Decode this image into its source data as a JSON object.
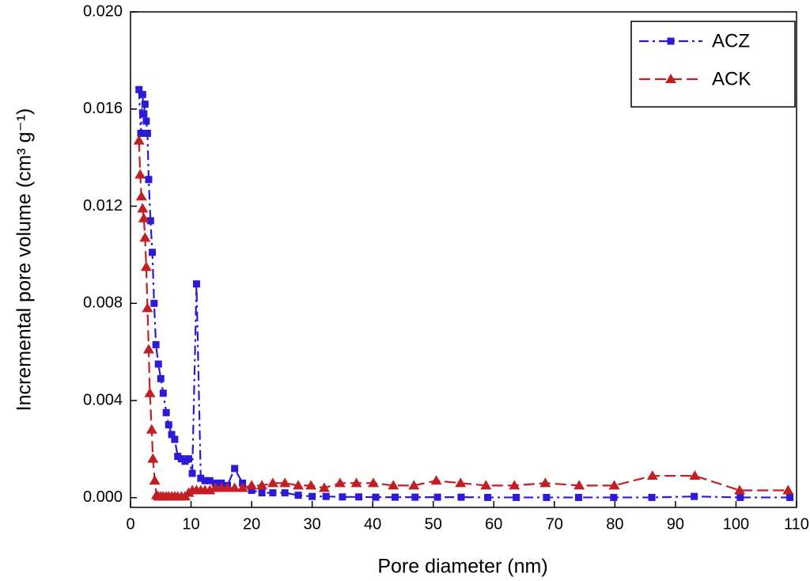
{
  "chart_data": {
    "type": "line",
    "xlabel": "Pore diameter (nm)",
    "ylabel": "Incremental pore volume (cm³ g⁻¹)",
    "xlim": [
      0,
      110
    ],
    "ylim": [
      -0.0004,
      0.02
    ],
    "xticks": [
      0,
      10,
      20,
      30,
      40,
      50,
      60,
      70,
      80,
      90,
      100,
      110
    ],
    "yticks": [
      {
        "value": 0,
        "label": "0.000"
      },
      {
        "value": 0.004,
        "label": "0.004"
      },
      {
        "value": 0.008,
        "label": "0.008"
      },
      {
        "value": 0.012,
        "label": "0.012"
      },
      {
        "value": 0.016,
        "label": "0.016"
      },
      {
        "value": 0.02,
        "label": "0.020"
      }
    ],
    "legend": "upper right",
    "series": [
      {
        "name": "ACZ",
        "color": "#2b1bd6",
        "marker": "square",
        "dash": "dashdot",
        "x": [
          1.4,
          1.7,
          2.0,
          2.2,
          2.4,
          2.6,
          2.8,
          3.0,
          3.3,
          3.6,
          3.9,
          4.2,
          4.6,
          5.0,
          5.4,
          5.9,
          6.3,
          6.8,
          7.3,
          7.8,
          8.4,
          9.0,
          9.6,
          10.2,
          10.9,
          11.6,
          12.3,
          13.1,
          14.0,
          15.0,
          16.0,
          17.2,
          18.5,
          20.0,
          21.7,
          23.5,
          25.5,
          27.7,
          30.0,
          32.3,
          35.0,
          37.7,
          40.5,
          43.7,
          47.0,
          50.7,
          54.6,
          59.0,
          63.7,
          68.7,
          74.0,
          79.8,
          86.1,
          93.1,
          100.7,
          108.9
        ],
        "values": [
          0.0168,
          0.015,
          0.0166,
          0.0158,
          0.0162,
          0.0155,
          0.015,
          0.0131,
          0.0114,
          0.0101,
          0.008,
          0.0063,
          0.0055,
          0.0049,
          0.0043,
          0.0035,
          0.003,
          0.0026,
          0.0024,
          0.0017,
          0.0016,
          0.0015,
          0.0016,
          0.001,
          0.0088,
          0.0008,
          0.0007,
          0.0007,
          0.0006,
          0.0006,
          0.0005,
          0.0012,
          0.0006,
          0.0003,
          0.0002,
          0.0002,
          0.0002,
          0.0001,
          5e-05,
          5e-05,
          3e-05,
          3e-05,
          2e-05,
          2e-05,
          2e-05,
          2e-05,
          2e-05,
          1e-05,
          1e-05,
          1e-05,
          1e-05,
          1e-05,
          1e-05,
          5e-05,
          1e-05,
          1e-05
        ]
      },
      {
        "name": "ACK",
        "color": "#c21f24",
        "marker": "triangle",
        "dash": "dash",
        "x": [
          1.4,
          1.6,
          1.8,
          2.0,
          2.2,
          2.4,
          2.6,
          2.8,
          3.0,
          3.2,
          3.5,
          3.7,
          4.0,
          4.3,
          4.6,
          5.0,
          5.4,
          5.9,
          6.3,
          6.8,
          7.3,
          7.8,
          8.4,
          9.0,
          9.6,
          10.2,
          10.9,
          11.6,
          12.3,
          13.1,
          14.0,
          15.0,
          16.0,
          17.2,
          18.5,
          20.0,
          21.7,
          23.5,
          25.5,
          27.7,
          29.8,
          32.0,
          34.6,
          37.3,
          40.1,
          43.4,
          46.8,
          50.5,
          54.5,
          58.7,
          63.4,
          68.5,
          74.1,
          79.9,
          86.2,
          93.2,
          100.6,
          108.6
        ],
        "values": [
          0.0147,
          0.0133,
          0.0124,
          0.0119,
          0.0115,
          0.0107,
          0.0095,
          0.0078,
          0.0061,
          0.0043,
          0.0028,
          0.0016,
          0.0007,
          0.0001,
          5e-05,
          5e-05,
          5e-05,
          5e-05,
          5e-05,
          5e-05,
          5e-05,
          5e-05,
          5e-05,
          5e-05,
          0.0002,
          0.0003,
          0.0003,
          0.0003,
          0.0003,
          0.0003,
          0.0004,
          0.0004,
          0.0004,
          0.0004,
          0.0004,
          0.0005,
          0.0005,
          0.0006,
          0.0006,
          0.0005,
          0.0005,
          0.0004,
          0.0006,
          0.0006,
          0.0006,
          0.0005,
          0.0005,
          0.0007,
          0.0006,
          0.0005,
          0.0005,
          0.0006,
          0.0005,
          0.0005,
          0.0009,
          0.0009,
          0.0003,
          0.0003
        ]
      }
    ]
  }
}
